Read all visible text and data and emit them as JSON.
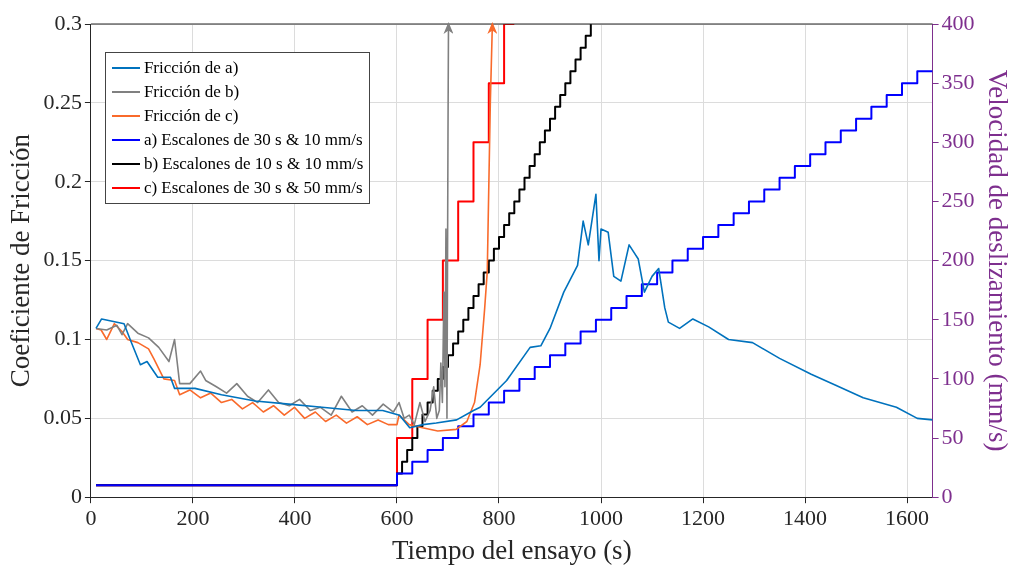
{
  "chart_data": {
    "type": "line",
    "xlabel": "Tiempo del ensayo (s)",
    "ylabel": "Coeficiente de Fricción",
    "y2label": "Velocidad de deslizamiento (mm/s)",
    "xlim": [
      0,
      1650
    ],
    "xticks": [
      0,
      200,
      400,
      600,
      800,
      1000,
      1200,
      1400,
      1600
    ],
    "ylim": [
      0,
      0.3
    ],
    "yticks": [
      0,
      0.05,
      0.1,
      0.15,
      0.2,
      0.25,
      0.3
    ],
    "y2lim": [
      0,
      400
    ],
    "y2ticks": [
      0,
      50,
      100,
      150,
      200,
      250,
      300,
      350,
      400
    ],
    "grid": true,
    "legend": "top left",
    "marker": "none",
    "line_style": "solid",
    "series": [
      {
        "name": "Fricción de a)",
        "type": "line",
        "color": "#0072bd",
        "x": [
          10,
          21,
          65,
          77,
          97,
          110,
          131,
          156,
          164,
          204,
          256,
          322,
          388,
          453,
          520,
          572,
          605,
          625,
          651,
          677,
          717,
          750,
          763,
          815,
          861,
          882,
          900,
          927,
          954,
          965,
          975,
          990,
          996,
          1000,
          1014,
          1025,
          1039,
          1055,
          1073,
          1085,
          1100,
          1113,
          1125,
          1132,
          1154,
          1180,
          1211,
          1250,
          1297,
          1350,
          1412,
          1460,
          1514,
          1579,
          1620,
          1650
        ],
        "values": [
          0.107,
          0.113,
          0.11,
          0.1,
          0.084,
          0.086,
          0.076,
          0.076,
          0.069,
          0.069,
          0.065,
          0.061,
          0.059,
          0.057,
          0.055,
          0.055,
          0.052,
          0.044,
          0.046,
          0.047,
          0.049,
          0.055,
          0.057,
          0.074,
          0.095,
          0.096,
          0.107,
          0.13,
          0.147,
          0.175,
          0.16,
          0.192,
          0.15,
          0.17,
          0.168,
          0.14,
          0.137,
          0.16,
          0.151,
          0.13,
          0.14,
          0.145,
          0.12,
          0.111,
          0.107,
          0.113,
          0.108,
          0.1,
          0.098,
          0.088,
          0.078,
          0.071,
          0.063,
          0.057,
          0.05,
          0.049
        ]
      },
      {
        "name": "Fricción de b)",
        "type": "line",
        "color": "#808080",
        "x": [
          10,
          31,
          51,
          61,
          72,
          92,
          113,
          133,
          153,
          164,
          174,
          194,
          215,
          225,
          246,
          266,
          286,
          307,
          327,
          348,
          368,
          389,
          409,
          430,
          450,
          471,
          491,
          512,
          532,
          552,
          573,
          593,
          604,
          614,
          624,
          634,
          645,
          655,
          665,
          672,
          678,
          683,
          686,
          689,
          692,
          694,
          696,
          698,
          700,
          701
        ],
        "values": [
          0.107,
          0.106,
          0.109,
          0.103,
          0.11,
          0.104,
          0.101,
          0.095,
          0.086,
          0.1,
          0.072,
          0.072,
          0.08,
          0.074,
          0.07,
          0.066,
          0.072,
          0.064,
          0.06,
          0.068,
          0.06,
          0.058,
          0.062,
          0.055,
          0.057,
          0.052,
          0.064,
          0.054,
          0.058,
          0.052,
          0.059,
          0.054,
          0.06,
          0.05,
          0.052,
          0.046,
          0.06,
          0.048,
          0.055,
          0.07,
          0.05,
          0.055,
          0.085,
          0.06,
          0.13,
          0.07,
          0.17,
          0.05,
          0.23,
          0.3
        ]
      },
      {
        "name": "Fricción de c)",
        "type": "line",
        "color": "#f96a2b",
        "x": [
          10,
          20,
          31,
          46,
          61,
          72,
          92,
          113,
          123,
          143,
          164,
          174,
          194,
          215,
          235,
          256,
          276,
          297,
          317,
          338,
          358,
          379,
          399,
          419,
          440,
          460,
          481,
          501,
          522,
          542,
          563,
          583,
          600,
          604,
          624,
          650,
          680,
          716,
          737,
          752,
          763,
          772,
          777,
          780,
          783,
          787
        ],
        "values": [
          0.107,
          0.106,
          0.1,
          0.11,
          0.105,
          0.1,
          0.098,
          0.094,
          0.088,
          0.075,
          0.074,
          0.065,
          0.068,
          0.063,
          0.066,
          0.06,
          0.062,
          0.056,
          0.06,
          0.054,
          0.058,
          0.052,
          0.057,
          0.05,
          0.054,
          0.048,
          0.052,
          0.047,
          0.051,
          0.046,
          0.049,
          0.046,
          0.046,
          0.052,
          0.046,
          0.044,
          0.042,
          0.043,
          0.048,
          0.06,
          0.084,
          0.12,
          0.143,
          0.197,
          0.25,
          0.3
        ]
      },
      {
        "name": "a) Escalones de 30 s & 10 mm/s",
        "type": "step",
        "axis": "y2",
        "color": "#0000ff",
        "x": [
          10,
          600,
          630,
          660,
          690,
          720,
          750,
          780,
          810,
          840,
          870,
          900,
          930,
          960,
          990,
          1020,
          1050,
          1080,
          1110,
          1140,
          1170,
          1200,
          1230,
          1260,
          1290,
          1320,
          1350,
          1380,
          1410,
          1440,
          1470,
          1500,
          1530,
          1560,
          1590,
          1620,
          1650
        ],
        "values": [
          10,
          20,
          30,
          40,
          50,
          60,
          70,
          80,
          90,
          100,
          110,
          120,
          130,
          140,
          150,
          160,
          170,
          180,
          190,
          200,
          210,
          220,
          230,
          240,
          250,
          260,
          270,
          280,
          290,
          300,
          310,
          320,
          330,
          340,
          350,
          360,
          360
        ]
      },
      {
        "name": "b) Escalones de 10 s & 10 mm/s",
        "type": "step",
        "axis": "y2",
        "color": "#000000",
        "x": [
          10,
          600,
          610,
          620,
          630,
          640,
          650,
          660,
          670,
          680,
          690,
          700,
          710,
          720,
          730,
          740,
          750,
          760,
          770,
          780,
          790,
          800,
          810,
          820,
          830,
          840,
          850,
          860,
          870,
          880,
          890,
          900,
          910,
          920,
          930,
          940,
          950,
          960,
          970,
          980
        ],
        "values": [
          10,
          20,
          30,
          40,
          50,
          60,
          70,
          80,
          90,
          100,
          110,
          120,
          130,
          140,
          150,
          160,
          170,
          180,
          190,
          200,
          210,
          220,
          230,
          240,
          250,
          260,
          270,
          280,
          290,
          300,
          310,
          320,
          330,
          340,
          350,
          360,
          370,
          380,
          390,
          400
        ]
      },
      {
        "name": "c) Escalones de 30 s & 50 mm/s",
        "type": "step",
        "axis": "y2",
        "color": "#ff0000",
        "x": [
          10,
          600,
          630,
          660,
          690,
          720,
          750,
          780,
          810,
          830
        ],
        "values": [
          10,
          50,
          100,
          150,
          200,
          250,
          300,
          350,
          400,
          400
        ]
      }
    ]
  }
}
